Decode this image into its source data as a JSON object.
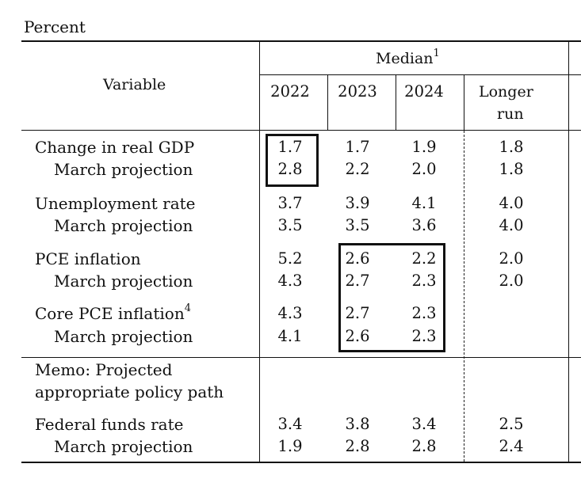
{
  "unit_label": "Percent",
  "header": {
    "variable": "Variable",
    "median": "Median",
    "median_note": "1",
    "years": [
      "2022",
      "2023",
      "2024"
    ],
    "longer_run_line1": "Longer",
    "longer_run_line2": "run"
  },
  "rows": {
    "gdp": {
      "label": "Change in real GDP",
      "values": [
        "1.7",
        "1.7",
        "1.9",
        "1.8"
      ]
    },
    "gdp_march": {
      "label": "March projection",
      "values": [
        "2.8",
        "2.2",
        "2.0",
        "1.8"
      ]
    },
    "unemp": {
      "label": "Unemployment rate",
      "values": [
        "3.7",
        "3.9",
        "4.1",
        "4.0"
      ]
    },
    "unemp_march": {
      "label": "March projection",
      "values": [
        "3.5",
        "3.5",
        "3.6",
        "4.0"
      ]
    },
    "pce": {
      "label": "PCE inflation",
      "values": [
        "5.2",
        "2.6",
        "2.2",
        "2.0"
      ]
    },
    "pce_march": {
      "label": "March projection",
      "values": [
        "4.3",
        "2.7",
        "2.3",
        "2.0"
      ]
    },
    "core": {
      "label": "Core PCE inflation",
      "note": "4",
      "values": [
        "4.3",
        "2.7",
        "2.3"
      ]
    },
    "core_march": {
      "label": "March projection",
      "values": [
        "4.1",
        "2.6",
        "2.3"
      ]
    },
    "memo_line1": "Memo: Projected",
    "memo_line2": "appropriate policy path",
    "ffr": {
      "label": "Federal funds rate",
      "values": [
        "3.4",
        "3.8",
        "3.4",
        "2.5"
      ]
    },
    "ffr_march": {
      "label": "March projection",
      "values": [
        "1.9",
        "2.8",
        "2.8",
        "2.4"
      ]
    }
  }
}
